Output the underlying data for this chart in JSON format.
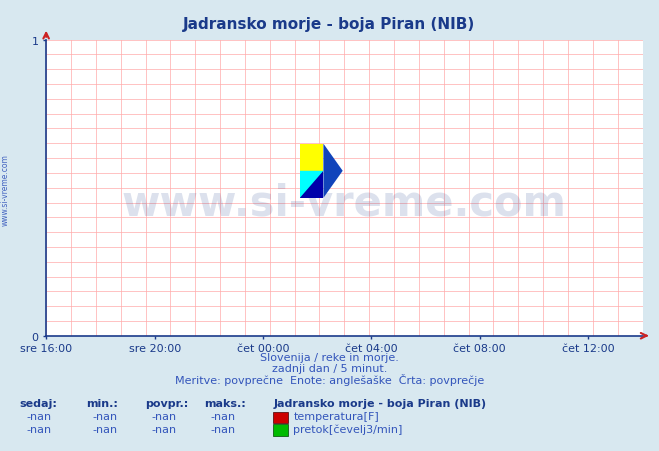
{
  "title": "Jadransko morje - boja Piran (NIB)",
  "title_color": "#1a3a8a",
  "bg_color": "#ffffff",
  "plot_bg_color": "#ffffff",
  "grid_color": "#ffaaaa",
  "axis_color": "#1a3a8a",
  "yticks": [
    0,
    1
  ],
  "ylim": [
    0,
    1
  ],
  "xlim": [
    0,
    1
  ],
  "xtick_labels": [
    "sre 16:00",
    "sre 20:00",
    "čet 00:00",
    "čet 04:00",
    "čet 08:00",
    "čet 12:00"
  ],
  "xtick_positions": [
    0.0,
    0.182,
    0.364,
    0.545,
    0.727,
    0.909
  ],
  "footer_line1": "Slovenija / reke in morje.",
  "footer_line2": "zadnji dan / 5 minut.",
  "footer_line3": "Meritve: povprečne  Enote: anglešaške  Črta: povprečje",
  "footer_color": "#3355bb",
  "watermark_text": "www.si-vreme.com",
  "watermark_color": "#1a3a8a",
  "watermark_alpha": 0.15,
  "left_text": "www.si-vreme.com",
  "left_text_color": "#3355bb",
  "table_headers": [
    "sedaj:",
    "min.:",
    "povpr.:",
    "maks.:",
    "Jadransko morje - boja Piran (NIB)"
  ],
  "table_header_color": "#1a3a8a",
  "table_row1_vals": [
    "-nan",
    "-nan",
    "-nan",
    "-nan"
  ],
  "table_row2_vals": [
    "-nan",
    "-nan",
    "-nan",
    "-nan"
  ],
  "table_row1_label": "temperatura[F]",
  "table_row2_label": "pretok[čevelj3/min]",
  "table_text_color": "#3355bb",
  "legend_color1": "#cc0000",
  "legend_color2": "#00bb00",
  "outer_bg": "#d8e8f0",
  "logo_yellow": "#ffff00",
  "logo_cyan": "#00ffff",
  "logo_dark_blue": "#0000aa",
  "logo_blue": "#1144bb"
}
